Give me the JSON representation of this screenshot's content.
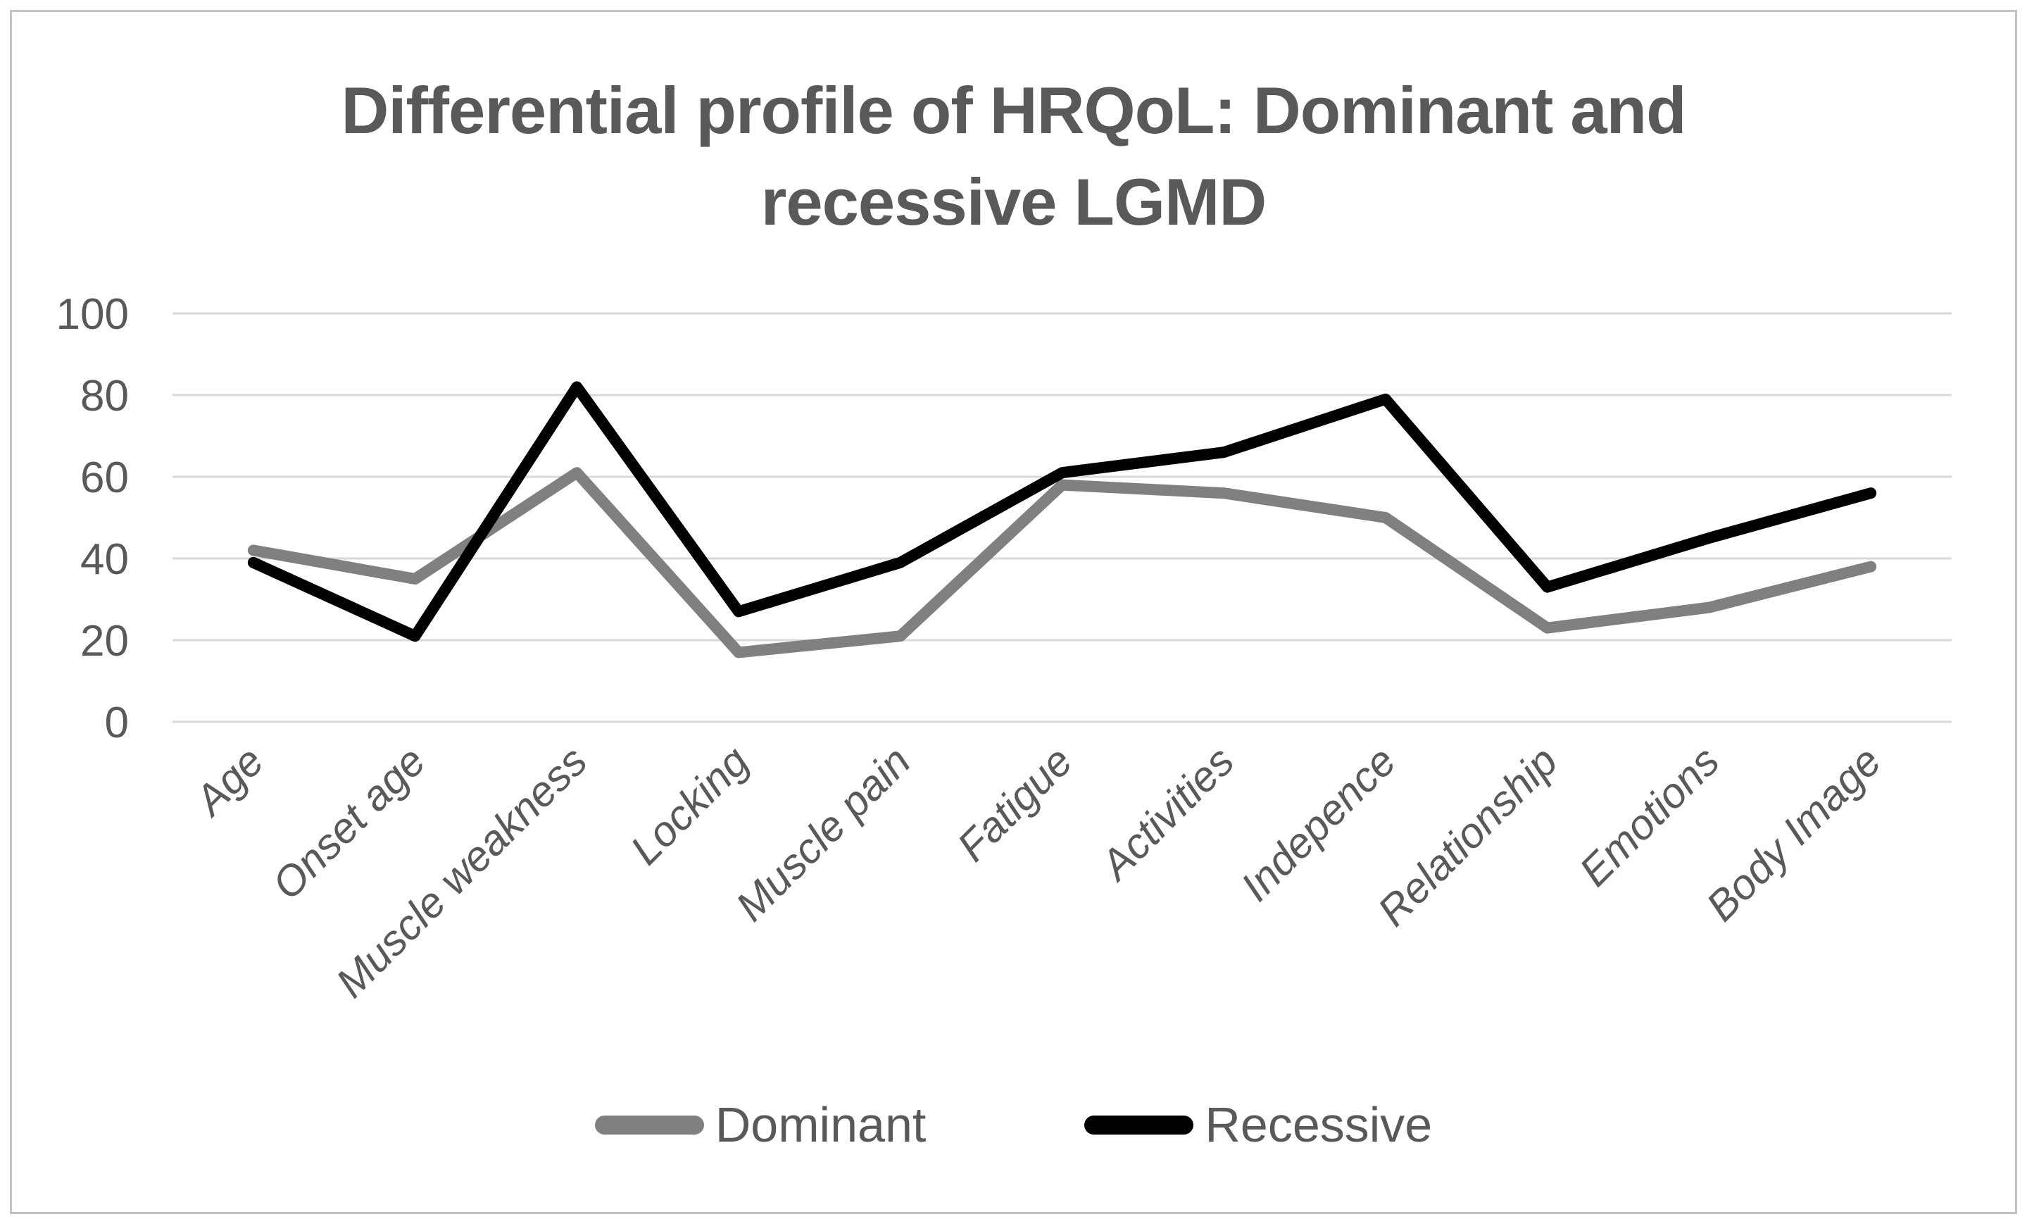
{
  "figure": {
    "background": "#ffffff",
    "border_color": "#c3c3c3"
  },
  "chart_data": {
    "type": "line",
    "title": "Differential profile of HRQoL: Dominant and recessive LGMD",
    "title_lines": [
      "Differential profile of HRQoL: Dominant and",
      "recessive LGMD"
    ],
    "title_color": "#595959",
    "categories": [
      "Age",
      "Onset age",
      "Muscle weakness",
      "Locking",
      "Muscle pain",
      "Fatigue",
      "Activities",
      "Indepence",
      "Relationship",
      "Emotions",
      "Body Image"
    ],
    "series": [
      {
        "name": "Dominant",
        "color": "#808080",
        "values": [
          42,
          35,
          61,
          17,
          21,
          58,
          56,
          50,
          23,
          28,
          38
        ]
      },
      {
        "name": "Recessive",
        "color": "#000000",
        "values": [
          39,
          21,
          82,
          27,
          39,
          61,
          66,
          79,
          33,
          45,
          56
        ]
      }
    ],
    "xlabel": "",
    "ylabel": "",
    "ylim": [
      0,
      100
    ],
    "yticks": [
      0,
      20,
      40,
      60,
      80,
      100
    ],
    "grid": "horizontal",
    "gridline_color": "#d9d9d9",
    "axis_text_color": "#595959",
    "x_tick_rotation_deg": 45,
    "legend_position": "bottom"
  }
}
